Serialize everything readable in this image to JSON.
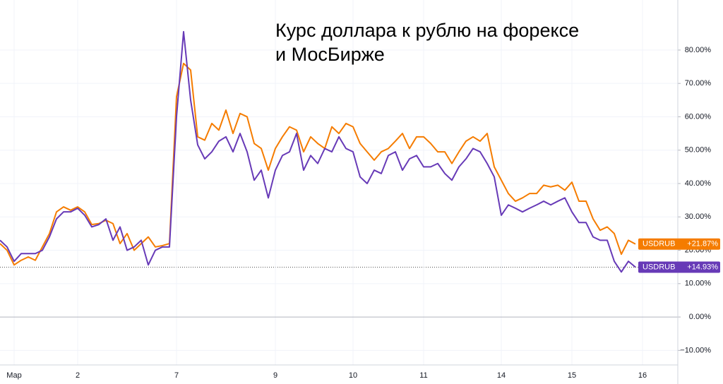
{
  "chart_data": {
    "type": "line",
    "title_lines": [
      "Курс доллара к рублю на форексе",
      "и МосБирже"
    ],
    "categories": [
      null,
      null,
      "Мар",
      null,
      null,
      null,
      null,
      null,
      null,
      null,
      null,
      "2",
      null,
      null,
      null,
      null,
      null,
      null,
      null,
      null,
      null,
      null,
      null,
      null,
      null,
      "7",
      null,
      null,
      null,
      null,
      null,
      null,
      null,
      null,
      null,
      null,
      null,
      null,
      null,
      "9",
      null,
      null,
      null,
      null,
      null,
      null,
      null,
      null,
      null,
      null,
      "10",
      null,
      null,
      null,
      null,
      null,
      null,
      null,
      null,
      null,
      "11",
      null,
      null,
      null,
      null,
      null,
      null,
      null,
      null,
      null,
      null,
      "14",
      null,
      null,
      null,
      null,
      null,
      null,
      null,
      null,
      null,
      "15",
      null,
      null,
      null,
      null,
      null,
      null,
      null,
      null,
      null,
      "16"
    ],
    "series": [
      {
        "name": "USDRUB",
        "color": "#f57c00",
        "last_value_label": "+21.87%",
        "values": [
          22,
          20,
          15.6,
          17,
          18,
          17,
          21,
          25,
          31.5,
          33,
          32,
          33,
          31.5,
          27.7,
          28,
          29,
          28,
          22,
          25,
          20,
          22,
          24,
          21,
          21.4,
          22,
          66,
          76,
          74,
          54,
          53,
          58,
          56,
          62,
          55,
          61,
          60,
          52,
          50.5,
          44,
          50.5,
          54,
          57,
          56,
          49.5,
          54,
          52,
          50.5,
          57,
          55,
          58,
          57,
          52,
          49.5,
          47,
          49.5,
          50.5,
          52.7,
          55,
          50.5,
          54,
          54,
          52,
          49.5,
          49.5,
          46,
          49.5,
          52.7,
          54,
          52.7,
          55,
          45,
          41,
          37,
          34.7,
          35.7,
          37,
          37,
          39.5,
          39,
          39.5,
          38,
          40.4,
          34.7,
          34.7,
          29.4,
          26,
          27,
          25,
          18.8,
          23,
          21.87,
          null
        ]
      },
      {
        "name": "USDRUB",
        "color": "#673ab7",
        "last_value_label": "+14.93%",
        "values": [
          23,
          21,
          16.7,
          19,
          19,
          19,
          20,
          24,
          29.4,
          31.5,
          31.5,
          32.6,
          30.5,
          27,
          27.7,
          29.4,
          23,
          27,
          20,
          21,
          23,
          15.6,
          20,
          21,
          21,
          60,
          85.5,
          65,
          51.6,
          47.4,
          49.5,
          52.7,
          54,
          49.5,
          55,
          49.5,
          41,
          44,
          35.7,
          44,
          48.4,
          49.5,
          55,
          44,
          48.4,
          46,
          50.5,
          49.5,
          54,
          50.5,
          49.5,
          42,
          40,
          44,
          43,
          48.4,
          49.5,
          44,
          47.4,
          48.4,
          45,
          45,
          46,
          43,
          41,
          45,
          47.4,
          50.5,
          49.5,
          46,
          42,
          30.5,
          33.6,
          32.6,
          31.5,
          32.6,
          33.6,
          34.7,
          33.6,
          34.7,
          35.7,
          31.5,
          28.3,
          28.3,
          24,
          23,
          23,
          16.7,
          13.5,
          16.7,
          14.93,
          null
        ]
      }
    ],
    "ylim": [
      -15,
      95
    ],
    "yticks": [
      {
        "value": -10,
        "label": "−10.00%"
      },
      {
        "value": 0,
        "label": "0.00%"
      },
      {
        "value": 10,
        "label": "10.00%"
      },
      {
        "value": 20,
        "label": "20.00%"
      },
      {
        "value": 30,
        "label": "30.00%"
      },
      {
        "value": 40,
        "label": "40.00%"
      },
      {
        "value": 50,
        "label": "50.00%"
      },
      {
        "value": 60,
        "label": "60.00%"
      },
      {
        "value": 70,
        "label": "70.00%"
      },
      {
        "value": 80,
        "label": "80.00%"
      }
    ],
    "grid": true
  }
}
